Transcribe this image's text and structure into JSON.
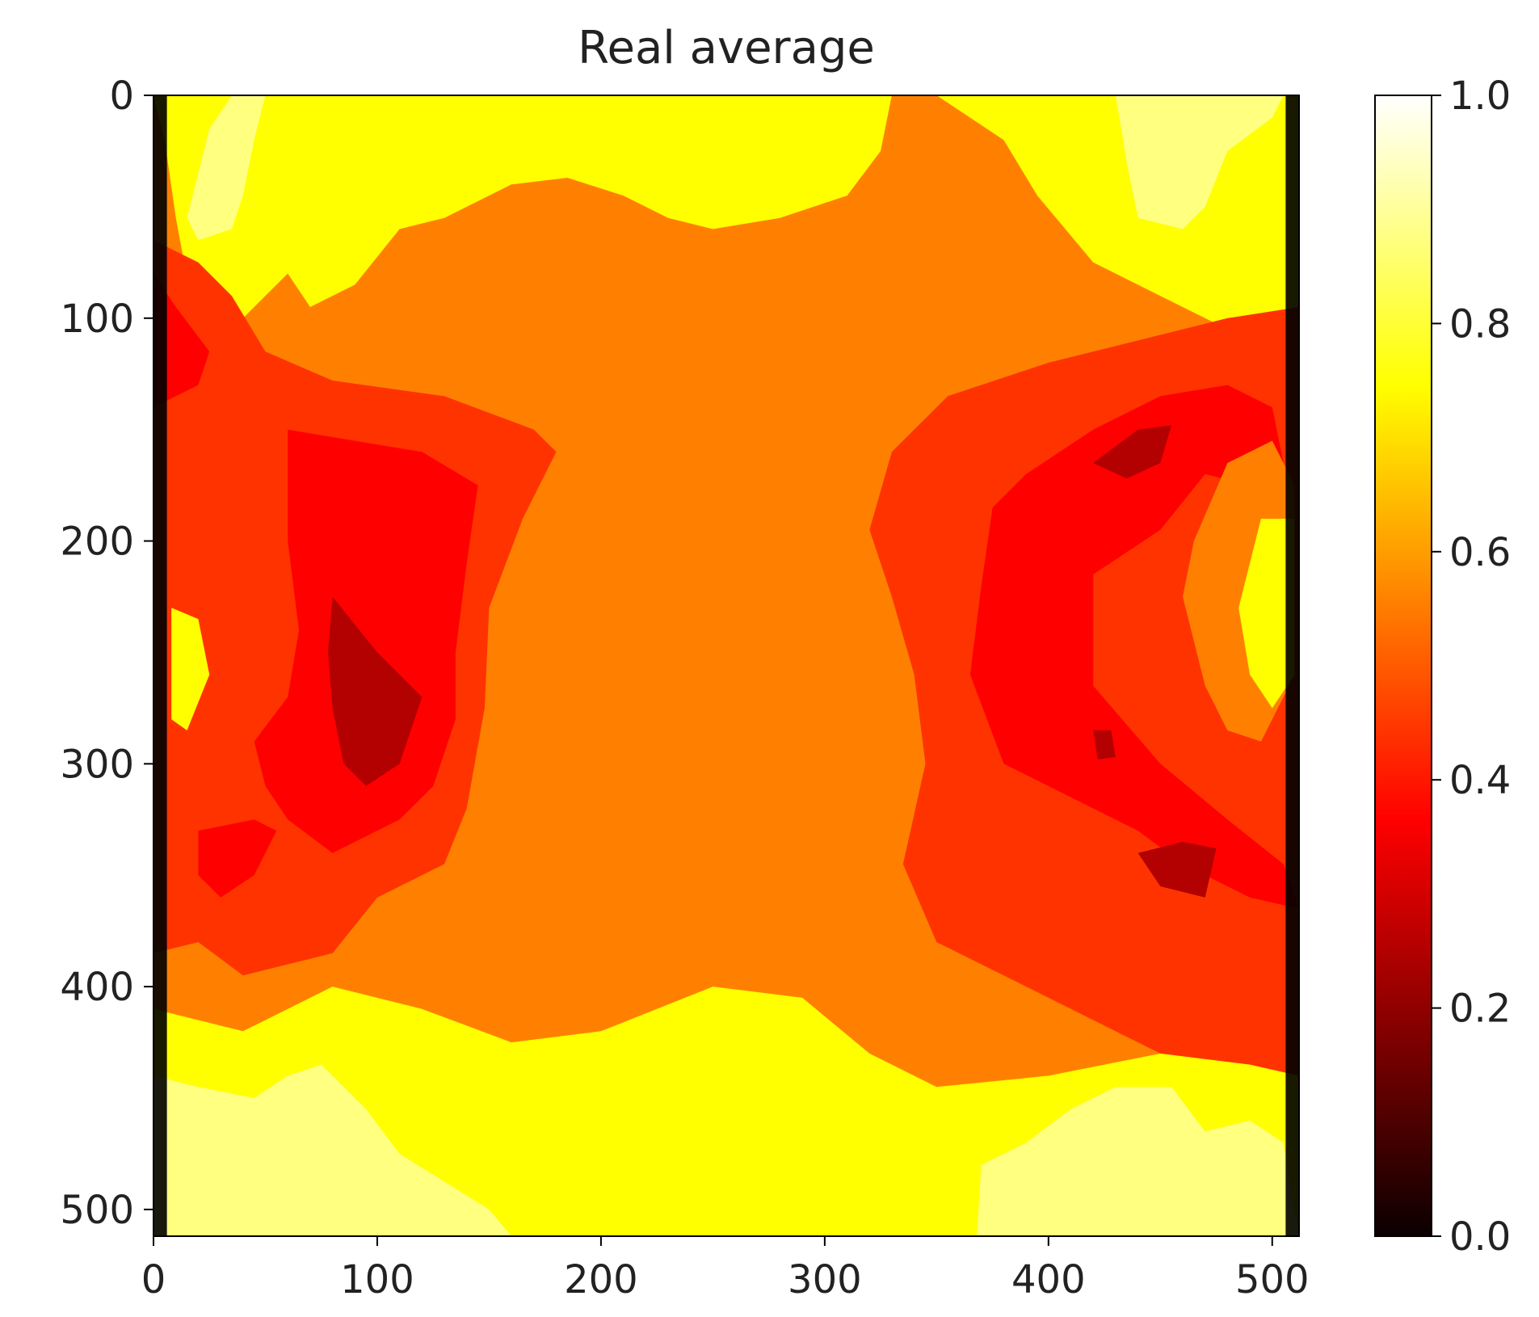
{
  "chart_data": {
    "type": "heatmap",
    "title": "Real average",
    "xlabel": "",
    "ylabel": "",
    "x_ticks": [
      0,
      100,
      200,
      300,
      400,
      500
    ],
    "y_ticks": [
      0,
      100,
      200,
      300,
      400,
      500
    ],
    "xlim": [
      0,
      512
    ],
    "ylim": [
      0,
      512
    ],
    "y_axis_inverted": true,
    "colormap": "hot",
    "colorbar": {
      "min": 0.0,
      "max": 1.0,
      "ticks": [
        "0.0",
        "0.2",
        "0.4",
        "0.6",
        "0.8",
        "1.0"
      ],
      "placement": "right"
    },
    "colors": {
      "level_0.2": "#b30000",
      "level_0.4": "#ff0000",
      "level_0.5": "#ff3300",
      "level_0.6": "#ff8000",
      "level_0.8": "#ffff00",
      "level_0.9": "#ffff80",
      "edge": "#000000"
    },
    "regions": [
      {
        "level": "level_0.6",
        "description": "background",
        "points": [
          [
            0,
            0
          ],
          [
            512,
            0
          ],
          [
            512,
            512
          ],
          [
            0,
            512
          ]
        ]
      },
      {
        "level": "level_0.8",
        "description": "top-left yellow",
        "points": [
          [
            0,
            0
          ],
          [
            110,
            0
          ],
          [
            100,
            30
          ],
          [
            75,
            55
          ],
          [
            70,
            70
          ],
          [
            55,
            85
          ],
          [
            40,
            100
          ],
          [
            30,
            95
          ],
          [
            15,
            82
          ],
          [
            10,
            55
          ],
          [
            5,
            20
          ]
        ]
      },
      {
        "level": "level_0.9",
        "description": "top-left pale",
        "points": [
          [
            35,
            0
          ],
          [
            50,
            0
          ],
          [
            45,
            20
          ],
          [
            40,
            45
          ],
          [
            35,
            60
          ],
          [
            20,
            65
          ],
          [
            15,
            55
          ],
          [
            20,
            35
          ],
          [
            25,
            15
          ]
        ]
      },
      {
        "level": "level_0.8",
        "description": "top-center yellow",
        "points": [
          [
            110,
            0
          ],
          [
            330,
            0
          ],
          [
            325,
            25
          ],
          [
            310,
            45
          ],
          [
            280,
            55
          ],
          [
            250,
            60
          ],
          [
            230,
            55
          ],
          [
            210,
            45
          ],
          [
            185,
            37
          ],
          [
            160,
            40
          ],
          [
            130,
            55
          ],
          [
            110,
            60
          ],
          [
            90,
            85
          ],
          [
            70,
            95
          ],
          [
            60,
            80
          ],
          [
            80,
            45
          ],
          [
            100,
            20
          ]
        ]
      },
      {
        "level": "level_0.8",
        "description": "top-right yellow",
        "points": [
          [
            350,
            0
          ],
          [
            512,
            0
          ],
          [
            512,
            100
          ],
          [
            490,
            110
          ],
          [
            470,
            100
          ],
          [
            450,
            90
          ],
          [
            420,
            75
          ],
          [
            395,
            45
          ],
          [
            380,
            20
          ]
        ]
      },
      {
        "level": "level_0.9",
        "description": "top-right pale",
        "points": [
          [
            430,
            0
          ],
          [
            505,
            0
          ],
          [
            500,
            10
          ],
          [
            480,
            25
          ],
          [
            470,
            50
          ],
          [
            460,
            60
          ],
          [
            440,
            55
          ],
          [
            435,
            30
          ]
        ]
      },
      {
        "level": "level_0.5",
        "description": "left band",
        "points": [
          [
            0,
            65
          ],
          [
            20,
            75
          ],
          [
            35,
            90
          ],
          [
            50,
            115
          ],
          [
            80,
            128
          ],
          [
            130,
            135
          ],
          [
            170,
            150
          ],
          [
            180,
            160
          ],
          [
            165,
            190
          ],
          [
            150,
            230
          ],
          [
            148,
            275
          ],
          [
            140,
            320
          ],
          [
            130,
            345
          ],
          [
            100,
            360
          ],
          [
            80,
            385
          ],
          [
            40,
            395
          ],
          [
            20,
            380
          ],
          [
            0,
            385
          ]
        ]
      },
      {
        "level": "level_0.4",
        "description": "left red",
        "points": [
          [
            0,
            80
          ],
          [
            10,
            95
          ],
          [
            25,
            115
          ],
          [
            20,
            130
          ],
          [
            0,
            140
          ]
        ]
      },
      {
        "level": "level_0.4",
        "description": "left-center red",
        "points": [
          [
            60,
            150
          ],
          [
            120,
            160
          ],
          [
            145,
            175
          ],
          [
            140,
            210
          ],
          [
            135,
            250
          ],
          [
            135,
            280
          ],
          [
            125,
            310
          ],
          [
            110,
            325
          ],
          [
            80,
            340
          ],
          [
            60,
            325
          ],
          [
            50,
            310
          ],
          [
            45,
            290
          ],
          [
            60,
            270
          ],
          [
            65,
            240
          ],
          [
            60,
            200
          ]
        ]
      },
      {
        "level": "level_0.2",
        "description": "left-center dark",
        "points": [
          [
            80,
            225
          ],
          [
            100,
            250
          ],
          [
            120,
            270
          ],
          [
            110,
            300
          ],
          [
            95,
            310
          ],
          [
            85,
            300
          ],
          [
            80,
            275
          ],
          [
            78,
            250
          ]
        ]
      },
      {
        "level": "level_0.4",
        "description": "left-lower red",
        "points": [
          [
            20,
            330
          ],
          [
            45,
            325
          ],
          [
            55,
            330
          ],
          [
            45,
            350
          ],
          [
            30,
            360
          ],
          [
            20,
            350
          ]
        ]
      },
      {
        "level": "level_0.5",
        "description": "right band",
        "points": [
          [
            512,
            95
          ],
          [
            512,
            445
          ],
          [
            480,
            440
          ],
          [
            450,
            430
          ],
          [
            420,
            415
          ],
          [
            380,
            395
          ],
          [
            350,
            380
          ],
          [
            335,
            345
          ],
          [
            345,
            300
          ],
          [
            340,
            260
          ],
          [
            330,
            225
          ],
          [
            320,
            195
          ],
          [
            330,
            160
          ],
          [
            355,
            135
          ],
          [
            400,
            120
          ],
          [
            440,
            110
          ],
          [
            480,
            100
          ]
        ]
      },
      {
        "level": "level_0.4",
        "description": "right-center red",
        "points": [
          [
            390,
            170
          ],
          [
            420,
            150
          ],
          [
            450,
            135
          ],
          [
            480,
            130
          ],
          [
            500,
            140
          ],
          [
            505,
            165
          ],
          [
            490,
            175
          ],
          [
            470,
            170
          ],
          [
            450,
            195
          ],
          [
            420,
            215
          ],
          [
            420,
            265
          ],
          [
            450,
            300
          ],
          [
            480,
            325
          ],
          [
            505,
            345
          ],
          [
            512,
            365
          ],
          [
            490,
            360
          ],
          [
            460,
            345
          ],
          [
            440,
            330
          ],
          [
            410,
            315
          ],
          [
            380,
            300
          ],
          [
            365,
            260
          ],
          [
            370,
            220
          ],
          [
            375,
            185
          ]
        ]
      },
      {
        "level": "level_0.2",
        "description": "right dark 1",
        "points": [
          [
            420,
            165
          ],
          [
            440,
            150
          ],
          [
            455,
            148
          ],
          [
            450,
            165
          ],
          [
            435,
            172
          ]
        ]
      },
      {
        "level": "level_0.2",
        "description": "right dark 2",
        "points": [
          [
            440,
            340
          ],
          [
            460,
            335
          ],
          [
            475,
            338
          ],
          [
            470,
            360
          ],
          [
            450,
            355
          ]
        ]
      },
      {
        "level": "level_0.2",
        "description": "right dark 3",
        "points": [
          [
            420,
            285
          ],
          [
            428,
            285
          ],
          [
            430,
            297
          ],
          [
            422,
            298
          ]
        ]
      },
      {
        "level": "level_0.6",
        "description": "right-inner orange",
        "points": [
          [
            480,
            165
          ],
          [
            500,
            155
          ],
          [
            510,
            175
          ],
          [
            510,
            260
          ],
          [
            495,
            290
          ],
          [
            480,
            285
          ],
          [
            470,
            265
          ],
          [
            460,
            225
          ],
          [
            465,
            200
          ]
        ]
      },
      {
        "level": "level_0.8",
        "description": "right yellow patch",
        "points": [
          [
            495,
            190
          ],
          [
            510,
            190
          ],
          [
            510,
            260
          ],
          [
            500,
            275
          ],
          [
            490,
            260
          ],
          [
            485,
            230
          ]
        ]
      },
      {
        "level": "level_0.8",
        "description": "left yellow patch",
        "points": [
          [
            8,
            230
          ],
          [
            20,
            235
          ],
          [
            25,
            260
          ],
          [
            15,
            285
          ],
          [
            8,
            280
          ]
        ]
      },
      {
        "level": "level_0.8",
        "description": "bottom yellow band",
        "points": [
          [
            0,
            410
          ],
          [
            40,
            420
          ],
          [
            80,
            400
          ],
          [
            120,
            410
          ],
          [
            160,
            425
          ],
          [
            200,
            420
          ],
          [
            250,
            400
          ],
          [
            290,
            405
          ],
          [
            320,
            430
          ],
          [
            350,
            445
          ],
          [
            400,
            440
          ],
          [
            450,
            430
          ],
          [
            490,
            435
          ],
          [
            512,
            440
          ],
          [
            512,
            512
          ],
          [
            0,
            512
          ]
        ]
      },
      {
        "level": "level_0.9",
        "description": "bottom-left pale",
        "points": [
          [
            0,
            440
          ],
          [
            20,
            445
          ],
          [
            45,
            450
          ],
          [
            60,
            440
          ],
          [
            75,
            435
          ],
          [
            95,
            455
          ],
          [
            110,
            475
          ],
          [
            150,
            500
          ],
          [
            160,
            512
          ],
          [
            0,
            512
          ]
        ]
      },
      {
        "level": "level_0.9",
        "description": "bottom-right pale",
        "points": [
          [
            368,
            512
          ],
          [
            370,
            480
          ],
          [
            390,
            470
          ],
          [
            410,
            455
          ],
          [
            430,
            445
          ],
          [
            455,
            445
          ],
          [
            470,
            465
          ],
          [
            490,
            460
          ],
          [
            505,
            470
          ],
          [
            512,
            512
          ]
        ]
      }
    ]
  }
}
